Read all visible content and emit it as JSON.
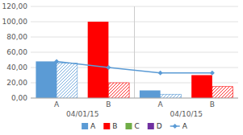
{
  "chart_data": {
    "type": "bar",
    "categories": [
      "A",
      "B",
      "A",
      "B"
    ],
    "annotations": [
      "04/01/15",
      "04/10/15"
    ],
    "series": [
      {
        "name": "A",
        "color": "#5B9BD5",
        "colors": [
          "#5B9BD5",
          "#FF0000",
          "#5B9BD5",
          "#FF0000"
        ],
        "values": [
          48,
          100,
          10,
          30
        ]
      },
      {
        "name": "B",
        "color": "#FF0000",
        "colors": [
          "#5B9BD5",
          "#FF0000",
          "#5B9BD5",
          "#FF0000"
        ],
        "values": [
          46,
          20,
          5,
          15
        ]
      },
      {
        "name": "C",
        "color": "#70AD47",
        "values": [
          null,
          null,
          null,
          null
        ]
      },
      {
        "name": "D",
        "color": "#7030A0",
        "values": [
          null,
          null,
          null,
          null
        ]
      },
      {
        "name": "A",
        "type": "line",
        "color": "#5B9BD5",
        "marker": "diamond",
        "values": [
          48,
          40,
          33,
          33
        ]
      }
    ],
    "ylim": [
      0,
      120
    ],
    "yticks": [
      {
        "value": 0,
        "label": "0,00"
      },
      {
        "value": 20,
        "label": "20,00"
      },
      {
        "value": 40,
        "label": "40,00"
      },
      {
        "value": 60,
        "label": "60,00"
      },
      {
        "value": 80,
        "label": "80,00"
      },
      {
        "value": 100,
        "label": "100,00"
      },
      {
        "value": 120,
        "label": "120,00"
      }
    ],
    "grid": true,
    "legend": "bottom"
  }
}
